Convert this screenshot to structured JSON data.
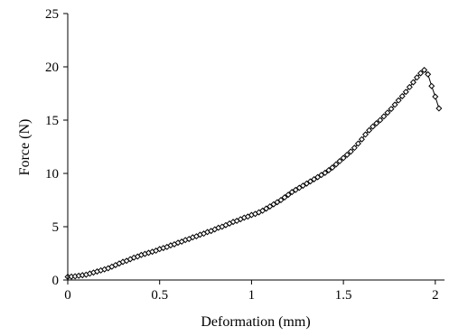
{
  "chart_data": {
    "type": "scatter",
    "xlabel": "Deformation (mm)",
    "ylabel": "Force (N)",
    "xlim": [
      0,
      2.05
    ],
    "ylim": [
      0,
      25
    ],
    "xticks": [
      0,
      0.5,
      1,
      1.5,
      2
    ],
    "xtick_labels": [
      "0",
      "0.5",
      "1",
      "1.5",
      "2"
    ],
    "yticks": [
      0,
      5,
      10,
      15,
      20,
      25
    ],
    "ytick_labels": [
      "0",
      "5",
      "10",
      "15",
      "20",
      "25"
    ],
    "grid": false,
    "legend": "none",
    "series": [
      {
        "marker": "diamond-open",
        "line": true,
        "x": [
          0,
          0.02,
          0.04,
          0.06,
          0.08,
          0.1,
          0.12,
          0.14,
          0.16,
          0.18,
          0.2,
          0.22,
          0.24,
          0.26,
          0.28,
          0.3,
          0.32,
          0.34,
          0.36,
          0.38,
          0.4,
          0.42,
          0.44,
          0.46,
          0.48,
          0.5,
          0.52,
          0.54,
          0.56,
          0.58,
          0.6,
          0.62,
          0.64,
          0.66,
          0.68,
          0.7,
          0.72,
          0.74,
          0.76,
          0.78,
          0.8,
          0.82,
          0.84,
          0.86,
          0.88,
          0.9,
          0.92,
          0.94,
          0.96,
          0.98,
          1.0,
          1.02,
          1.04,
          1.06,
          1.08,
          1.1,
          1.12,
          1.14,
          1.16,
          1.18,
          1.2,
          1.22,
          1.24,
          1.26,
          1.28,
          1.3,
          1.32,
          1.34,
          1.36,
          1.38,
          1.4,
          1.42,
          1.44,
          1.46,
          1.48,
          1.5,
          1.52,
          1.54,
          1.56,
          1.58,
          1.6,
          1.62,
          1.64,
          1.66,
          1.68,
          1.7,
          1.72,
          1.74,
          1.76,
          1.78,
          1.8,
          1.82,
          1.84,
          1.86,
          1.88,
          1.9,
          1.92,
          1.94,
          1.96,
          1.98,
          2.0,
          2.02
        ],
        "y": [
          0.3,
          0.32,
          0.35,
          0.4,
          0.45,
          0.5,
          0.6,
          0.7,
          0.8,
          0.9,
          1.0,
          1.1,
          1.25,
          1.4,
          1.55,
          1.7,
          1.8,
          1.95,
          2.1,
          2.2,
          2.35,
          2.45,
          2.55,
          2.65,
          2.75,
          2.9,
          3.0,
          3.1,
          3.25,
          3.35,
          3.5,
          3.6,
          3.75,
          3.85,
          4.0,
          4.1,
          4.25,
          4.35,
          4.5,
          4.6,
          4.75,
          4.9,
          5.0,
          5.15,
          5.3,
          5.45,
          5.55,
          5.7,
          5.85,
          5.95,
          6.1,
          6.2,
          6.35,
          6.5,
          6.7,
          6.9,
          7.1,
          7.3,
          7.5,
          7.75,
          8.0,
          8.25,
          8.45,
          8.65,
          8.85,
          9.05,
          9.25,
          9.45,
          9.65,
          9.85,
          10.05,
          10.3,
          10.55,
          10.85,
          11.15,
          11.45,
          11.75,
          12.05,
          12.4,
          12.8,
          13.2,
          13.65,
          14.05,
          14.4,
          14.7,
          15.0,
          15.35,
          15.7,
          16.05,
          16.45,
          16.85,
          17.25,
          17.65,
          18.1,
          18.55,
          19.0,
          19.4,
          19.7,
          19.3,
          18.2,
          17.2,
          16.1
        ]
      }
    ]
  }
}
